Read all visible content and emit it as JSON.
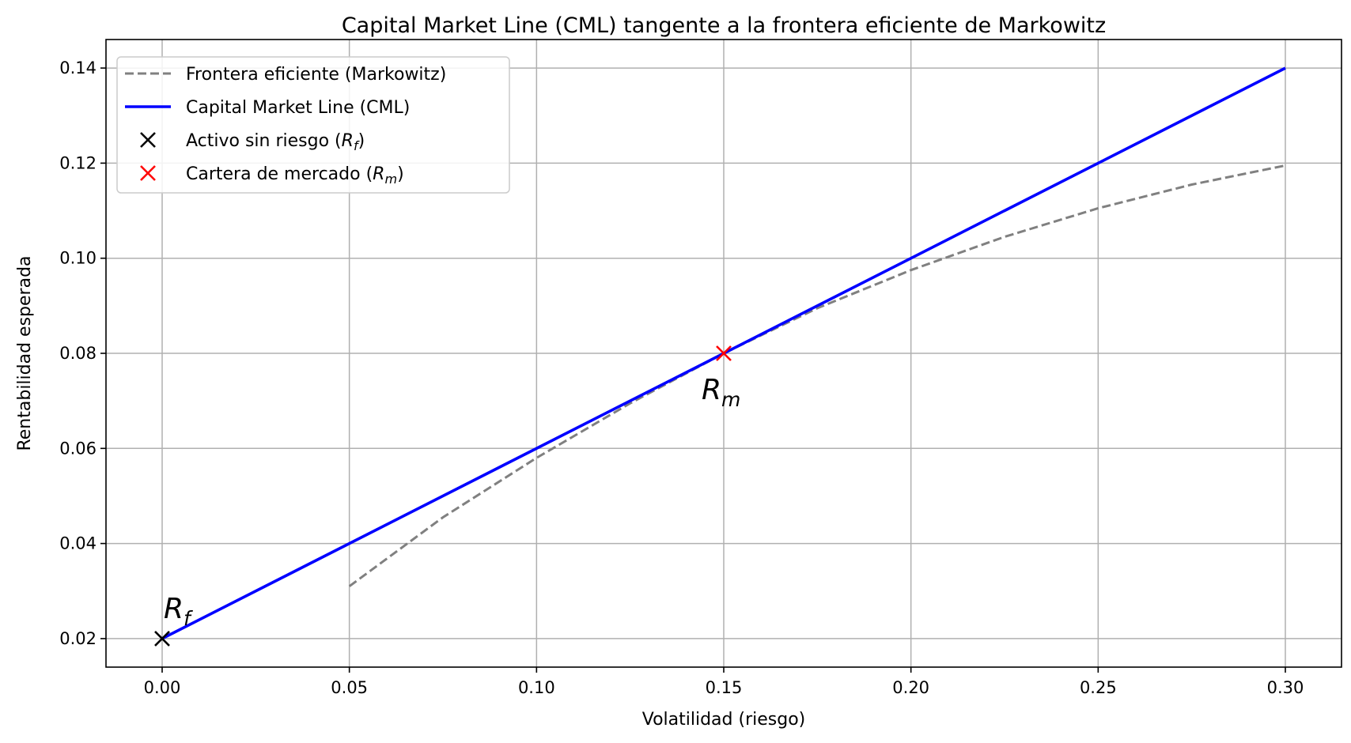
{
  "chart_data": {
    "type": "line",
    "title": "Capital Market Line (CML) tangente a la frontera eficiente de Markowitz",
    "xlabel": "Volatilidad (riesgo)",
    "ylabel": "Rentabilidad esperada",
    "xlim": [
      -0.015,
      0.315
    ],
    "ylim": [
      0.014,
      0.146
    ],
    "grid": true,
    "legend_position": "top-left",
    "x_ticks": [
      0.0,
      0.05,
      0.1,
      0.15,
      0.2,
      0.25,
      0.3
    ],
    "x_tick_labels": [
      "0.00",
      "0.05",
      "0.10",
      "0.15",
      "0.20",
      "0.25",
      "0.30"
    ],
    "y_ticks": [
      0.02,
      0.04,
      0.06,
      0.08,
      0.1,
      0.12,
      0.14
    ],
    "y_tick_labels": [
      "0.02",
      "0.04",
      "0.06",
      "0.08",
      "0.10",
      "0.12",
      "0.14"
    ],
    "series": [
      {
        "name": "Frontera eficiente (Markowitz)",
        "style": "dashed",
        "color": "#808080",
        "x": [
          0.05,
          0.075,
          0.1,
          0.125,
          0.15,
          0.175,
          0.2,
          0.225,
          0.25,
          0.275,
          0.3
        ],
        "y": [
          0.031,
          0.0455,
          0.058,
          0.0695,
          0.08,
          0.0895,
          0.0975,
          0.1045,
          0.1105,
          0.1155,
          0.1195
        ]
      },
      {
        "name": "Capital Market Line (CML)",
        "style": "solid",
        "color": "#0000ff",
        "x": [
          0.0,
          0.3
        ],
        "y": [
          0.02,
          0.14
        ]
      }
    ],
    "points": [
      {
        "name": "Activo sin riesgo",
        "symbol": "R",
        "sub": "f",
        "x": 0.0,
        "y": 0.02,
        "color": "#000000"
      },
      {
        "name": "Cartera de mercado",
        "symbol": "R",
        "sub": "m",
        "x": 0.15,
        "y": 0.08,
        "color": "#ff0000"
      }
    ],
    "legend": [
      {
        "kind": "dashed",
        "color": "#808080",
        "label": "Frontera eficiente (Markowitz)"
      },
      {
        "kind": "solid",
        "color": "#0000ff",
        "label": "Capital Market Line (CML)"
      },
      {
        "kind": "marker",
        "color": "#000000",
        "text": "Activo sin riesgo (",
        "sym": "R",
        "sub": "f",
        "close": ")"
      },
      {
        "kind": "marker",
        "color": "#ff0000",
        "text": "Cartera de mercado (",
        "sym": "R",
        "sub": "m",
        "close": ")"
      }
    ]
  }
}
